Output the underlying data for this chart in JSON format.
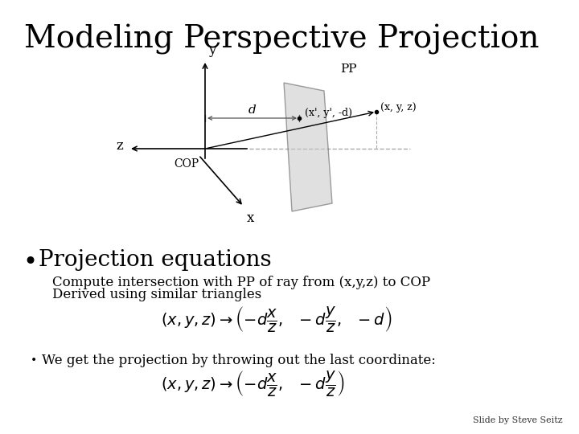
{
  "title": "Modeling Perspective Projection",
  "title_fontsize": 28,
  "background_color": "#ffffff",
  "slide_credit": "Slide by Steve Seitz",
  "bullet1": "Projection equations",
  "bullet1_fontsize": 20,
  "sub1": "Compute intersection with PP of ray from (x,y,z) to COP",
  "sub2": "Derived using similar triangles",
  "sub_fontsize": 12,
  "bullet2": "We get the projection by throwing out the last coordinate:",
  "eq_fontsize": 14,
  "diagram": {
    "axis_color": "#000000",
    "dashed_color": "#888888",
    "plane_color": "#c8c8c8",
    "plane_alpha": 0.55,
    "cop_label": "COP",
    "pp_label": "PP",
    "d_label": "d",
    "proj_point_label": "(x', y', -d)",
    "scene_point_label": "(x, y, z)",
    "y_label": "y",
    "z_label": "z",
    "x_label": "x"
  }
}
